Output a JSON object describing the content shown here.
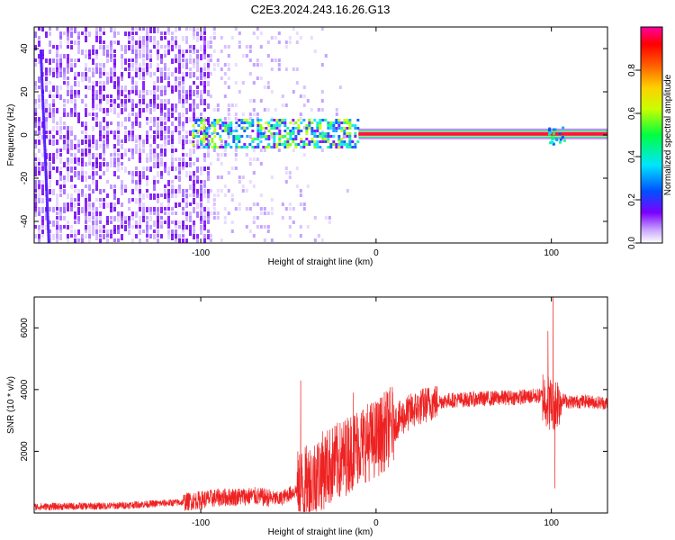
{
  "title": "C2E3.2024.243.16.26.G13",
  "chart_data": [
    {
      "type": "heatmap",
      "xlabel": "Height of straight line (km)",
      "ylabel": "Frequency (Hz)",
      "xlim": [
        -195,
        132
      ],
      "ylim": [
        -50,
        50
      ],
      "xticks": [
        -100,
        0,
        100
      ],
      "yticks": [
        -40,
        -20,
        0,
        20,
        40
      ],
      "colorbar": {
        "label": "Normalized spectral amplitude",
        "range": [
          0,
          1
        ],
        "ticks": [
          "0.0",
          "0.2",
          "0.4",
          "0.6",
          "0.8"
        ],
        "colormap": [
          "#ffffff",
          "#7b00ff",
          "#0050ff",
          "#00ffff",
          "#00ff00",
          "#ffff00",
          "#ff8000",
          "#ff0000",
          "#ff00a0"
        ]
      },
      "features": {
        "noise_region_km": [
          -195,
          -95
        ],
        "scattered_region_km": [
          -95,
          -10
        ],
        "scattered_band_hz": [
          -3,
          5
        ],
        "carrier_start_km": -10,
        "carrier_frequency_hz": 0.5
      }
    },
    {
      "type": "line",
      "xlabel": "Height of straight line (km)",
      "ylabel": "SNR (10 * v/v)",
      "xlim": [
        -195,
        132
      ],
      "ylim": [
        0,
        7000
      ],
      "xticks": [
        -100,
        0,
        100
      ],
      "yticks": [
        2000,
        4000,
        6000
      ],
      "series": [
        {
          "color": "#ee2222",
          "x": [
            -195,
            -150,
            -110,
            -90,
            -70,
            -55,
            -40,
            -30,
            -20,
            -10,
            0,
            10,
            20,
            30,
            40,
            60,
            80,
            95,
            100,
            103,
            105,
            110,
            120,
            132
          ],
          "y": [
            200,
            230,
            350,
            500,
            550,
            450,
            900,
            1400,
            1700,
            2200,
            2400,
            2900,
            3300,
            3550,
            3650,
            3700,
            3750,
            3800,
            3500,
            3600,
            3700,
            3600,
            3620,
            3550
          ],
          "spikes": [
            {
              "x": -43,
              "y": 4300
            },
            {
              "x": -13,
              "y": 3900
            },
            {
              "x": 98,
              "y": 5900
            },
            {
              "x": 101,
              "y": 7000
            },
            {
              "x": 102,
              "y": 800
            }
          ]
        }
      ]
    }
  ]
}
